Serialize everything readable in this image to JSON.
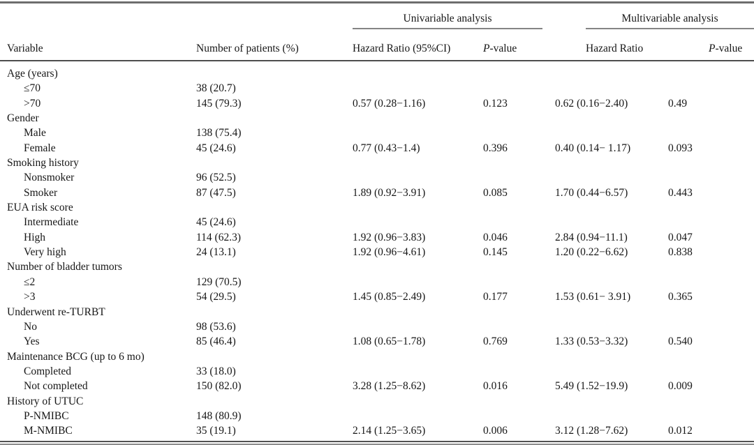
{
  "table": {
    "group_headers": {
      "univariable": "Univariable analysis",
      "multivariable": "Multivariable analysis"
    },
    "column_headers": {
      "variable": "Variable",
      "patients": "Number of patients (%)",
      "hr_ci": "Hazard Ratio (95%CI)",
      "hr": "Hazard Ratio",
      "pvalue_italic": "P",
      "pvalue_rest": "-value"
    },
    "rows": [
      {
        "indent": false,
        "cells": [
          "Age (years)",
          "",
          "",
          "",
          "",
          ""
        ]
      },
      {
        "indent": true,
        "cells": [
          "≤70",
          "38 (20.7)",
          "",
          "",
          "",
          ""
        ]
      },
      {
        "indent": true,
        "cells": [
          ">70",
          "145 (79.3)",
          "0.57 (0.28−1.16)",
          "0.123",
          "0.62 (0.16−2.40)",
          "0.49"
        ]
      },
      {
        "indent": false,
        "cells": [
          "Gender",
          "",
          "",
          "",
          "",
          ""
        ]
      },
      {
        "indent": true,
        "cells": [
          "Male",
          "138 (75.4)",
          "",
          "",
          "",
          ""
        ]
      },
      {
        "indent": true,
        "cells": [
          "Female",
          "45 (24.6)",
          "0.77 (0.43−1.4)",
          "0.396",
          "0.40 (0.14− 1.17)",
          "0.093"
        ]
      },
      {
        "indent": false,
        "cells": [
          "Smoking history",
          "",
          "",
          "",
          "",
          ""
        ]
      },
      {
        "indent": true,
        "cells": [
          "Nonsmoker",
          "96 (52.5)",
          "",
          "",
          "",
          ""
        ]
      },
      {
        "indent": true,
        "cells": [
          "Smoker",
          "87 (47.5)",
          "1.89 (0.92−3.91)",
          "0.085",
          "1.70 (0.44−6.57)",
          "0.443"
        ]
      },
      {
        "indent": false,
        "cells": [
          "EUA risk score",
          "",
          "",
          "",
          "",
          ""
        ]
      },
      {
        "indent": true,
        "cells": [
          "Intermediate",
          "45 (24.6)",
          "",
          "",
          "",
          ""
        ]
      },
      {
        "indent": true,
        "cells": [
          "High",
          "114 (62.3)",
          "1.92 (0.96−3.83)",
          "0.046",
          "2.84 (0.94−11.1)",
          "0.047"
        ]
      },
      {
        "indent": true,
        "cells": [
          "Very high",
          "24 (13.1)",
          "1.92 (0.96−4.61)",
          "0.145",
          "1.20 (0.22−6.62)",
          "0.838"
        ]
      },
      {
        "indent": false,
        "cells": [
          "Number of bladder tumors",
          "",
          "",
          "",
          "",
          ""
        ]
      },
      {
        "indent": true,
        "cells": [
          "≤2",
          "129 (70.5)",
          "",
          "",
          "",
          ""
        ]
      },
      {
        "indent": true,
        "cells": [
          ">3",
          "54 (29.5)",
          "1.45 (0.85−2.49)",
          "0.177",
          "1.53 (0.61− 3.91)",
          "0.365"
        ]
      },
      {
        "indent": false,
        "cells": [
          "Underwent re-TURBT",
          "",
          "",
          "",
          "",
          ""
        ]
      },
      {
        "indent": true,
        "cells": [
          "No",
          "98 (53.6)",
          "",
          "",
          "",
          ""
        ]
      },
      {
        "indent": true,
        "cells": [
          "Yes",
          "85 (46.4)",
          "1.08 (0.65−1.78)",
          "0.769",
          "1.33 (0.53−3.32)",
          "0.540"
        ]
      },
      {
        "indent": false,
        "cells": [
          "Maintenance BCG (up to 6 mo)",
          "",
          "",
          "",
          "",
          ""
        ]
      },
      {
        "indent": true,
        "cells": [
          "Completed",
          "33 (18.0)",
          "",
          "",
          "",
          ""
        ]
      },
      {
        "indent": true,
        "cells": [
          "Not completed",
          "150 (82.0)",
          "3.28 (1.25−8.62)",
          "0.016",
          "5.49 (1.52−19.9)",
          "0.009"
        ]
      },
      {
        "indent": false,
        "cells": [
          "History of UTUC",
          "",
          "",
          "",
          "",
          ""
        ]
      },
      {
        "indent": true,
        "cells": [
          "P-NMIBC",
          "148 (80.9)",
          "",
          "",
          "",
          ""
        ]
      },
      {
        "indent": true,
        "cells": [
          "M-NMIBC",
          "35 (19.1)",
          "2.14 (1.25−3.65)",
          "0.006",
          "3.12 (1.28−7.62)",
          "0.012"
        ]
      }
    ]
  }
}
